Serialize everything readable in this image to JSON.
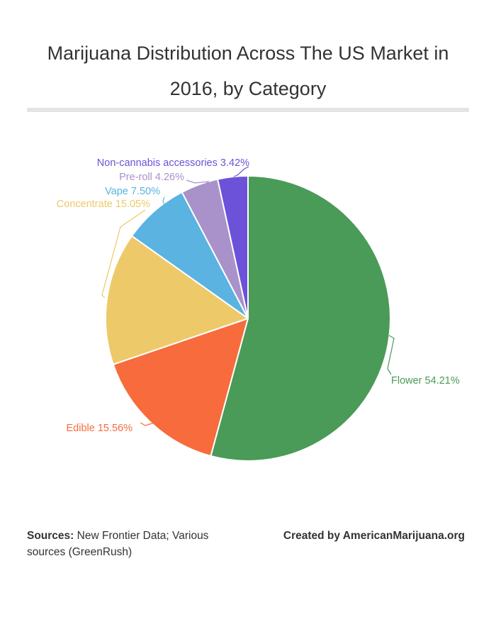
{
  "title_line1": "Marijuana Distribution Across The US Market in",
  "title_line2": "2016, by Category",
  "footer": {
    "sources_label": "Sources:",
    "sources_text": "New Frontier Data; Various sources (GreenRush)",
    "credit": "Created by AmericanMarijuana.org"
  },
  "chart_data": {
    "type": "pie",
    "title": "Marijuana Distribution Across The US Market in 2016, by Category",
    "slices": [
      {
        "name": "Flower",
        "value": 54.21,
        "label": "Flower 54.21%",
        "color": "#4a9a58"
      },
      {
        "name": "Edible",
        "value": 15.56,
        "label": "Edible 15.56%",
        "color": "#f76b3c"
      },
      {
        "name": "Concentrate",
        "value": 15.05,
        "label": "Concentrate 15.05%",
        "color": "#edc96a"
      },
      {
        "name": "Vape",
        "value": 7.5,
        "label": "Vape 7.50%",
        "color": "#5ab3e0"
      },
      {
        "name": "Pre-roll",
        "value": 4.26,
        "label": "Pre-roll 4.26%",
        "color": "#a992c9"
      },
      {
        "name": "Non-cannabis accessories",
        "value": 3.42,
        "label": "Non-cannabis accessories 3.42%",
        "color": "#6b52d8"
      }
    ],
    "start_angle": "12 o'clock",
    "direction": "clockwise",
    "legend": "none (direct labels)"
  }
}
